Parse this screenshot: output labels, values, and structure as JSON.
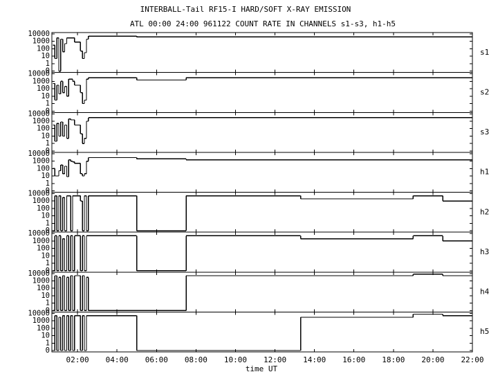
{
  "chart_data": {
    "type": "line",
    "step": true,
    "log": true,
    "title": "INTERBALL-Tail RF15-I HARD/SOFT X-RAY EMISSION",
    "subtitle": "ATL 00:00 24:00 961122  COUNT RATE IN CHANNELS s1-s3, h1-h5",
    "xlabel": "time UT",
    "xlim": [
      0.7,
      22
    ],
    "xticks": [
      {
        "value": 2,
        "label": "02:00"
      },
      {
        "value": 4,
        "label": "04:00"
      },
      {
        "value": 6,
        "label": "06:00"
      },
      {
        "value": 8,
        "label": "08:00"
      },
      {
        "value": 10,
        "label": "10:00"
      },
      {
        "value": 12,
        "label": "12:00"
      },
      {
        "value": 14,
        "label": "14:00"
      },
      {
        "value": 16,
        "label": "16:00"
      },
      {
        "value": 18,
        "label": "18:00"
      },
      {
        "value": 20,
        "label": "20:00"
      },
      {
        "value": 22,
        "label": "22:00"
      }
    ],
    "ylim": [
      0,
      10000
    ],
    "yticks": [
      0,
      1,
      10,
      100,
      1000,
      10000
    ],
    "x": [
      0.75,
      0.85,
      0.95,
      1.05,
      1.15,
      1.25,
      1.35,
      1.45,
      1.55,
      1.65,
      1.75,
      1.85,
      1.95,
      2.05,
      2.15,
      2.25,
      2.35,
      2.45,
      2.55,
      5.0,
      5.05,
      7.5,
      7.55,
      13.3,
      13.35,
      19.0,
      19.05,
      20.5,
      20.55,
      22.0
    ],
    "series": [
      {
        "name": "s1",
        "color": "#000000",
        "values": [
          300,
          5,
          3000,
          0,
          2000,
          40,
          500,
          3000,
          3000,
          3000,
          3000,
          800,
          800,
          800,
          50,
          5,
          30,
          2000,
          5000,
          4000,
          4000,
          4000,
          4000,
          4000,
          4000,
          4000,
          4000,
          4000,
          4000,
          4000
        ]
      },
      {
        "name": "s2",
        "color": "#000000",
        "values": [
          500,
          3,
          300,
          20,
          1000,
          30,
          200,
          10,
          2000,
          2000,
          1000,
          300,
          300,
          300,
          30,
          1,
          3,
          2000,
          3000,
          1500,
          1500,
          3000,
          3000,
          3000,
          3000,
          3000,
          3000,
          3000,
          3000,
          3000
        ]
      },
      {
        "name": "s3",
        "color": "#000000",
        "values": [
          300,
          2,
          500,
          10,
          800,
          10,
          300,
          5,
          2000,
          1500,
          1500,
          300,
          300,
          300,
          20,
          1,
          5,
          1000,
          3000,
          3000,
          3000,
          3000,
          3000,
          3000,
          3000,
          3000,
          3000,
          3000,
          3000,
          3000
        ]
      },
      {
        "name": "h1",
        "color": "#000000",
        "values": [
          100,
          10,
          10,
          50,
          300,
          20,
          200,
          8,
          1500,
          1000,
          800,
          500,
          500,
          500,
          20,
          10,
          20,
          1000,
          3000,
          2000,
          2000,
          1500,
          1500,
          1500,
          1500,
          1500,
          1500,
          1500,
          1500,
          1500
        ]
      },
      {
        "name": "h2",
        "color": "#000000",
        "values": [
          0,
          5000,
          0,
          5000,
          0,
          3000,
          0,
          5000,
          5000,
          0,
          5000,
          5000,
          5000,
          5000,
          1000,
          0,
          5000,
          0,
          5000,
          0,
          0,
          5000,
          5000,
          2000,
          2000,
          5000,
          5000,
          1000,
          1000,
          1000
        ]
      },
      {
        "name": "h3",
        "color": "#000000",
        "values": [
          0,
          5000,
          0,
          5000,
          0,
          2000,
          0,
          5000,
          0,
          5000,
          0,
          5000,
          5000,
          5000,
          0,
          5000,
          0,
          5000,
          5000,
          0,
          0,
          5000,
          5000,
          2000,
          2000,
          5000,
          5000,
          1000,
          1000,
          1000
        ]
      },
      {
        "name": "h4",
        "color": "#000000",
        "values": [
          0,
          5000,
          0,
          3000,
          0,
          5000,
          0,
          3000,
          0,
          5000,
          0,
          5000,
          5000,
          5000,
          0,
          5000,
          0,
          3000,
          0,
          0,
          0,
          5000,
          5000,
          5000,
          5000,
          8000,
          8000,
          5000,
          5000,
          5000
        ]
      },
      {
        "name": "h5",
        "color": "#000000",
        "values": [
          0,
          5000,
          0,
          3000,
          0,
          5000,
          0,
          5000,
          0,
          5000,
          0,
          5000,
          5000,
          5000,
          0,
          5000,
          0,
          5000,
          5000,
          0,
          0,
          0,
          0,
          3000,
          3000,
          8000,
          8000,
          5000,
          5000,
          5000
        ]
      }
    ]
  }
}
